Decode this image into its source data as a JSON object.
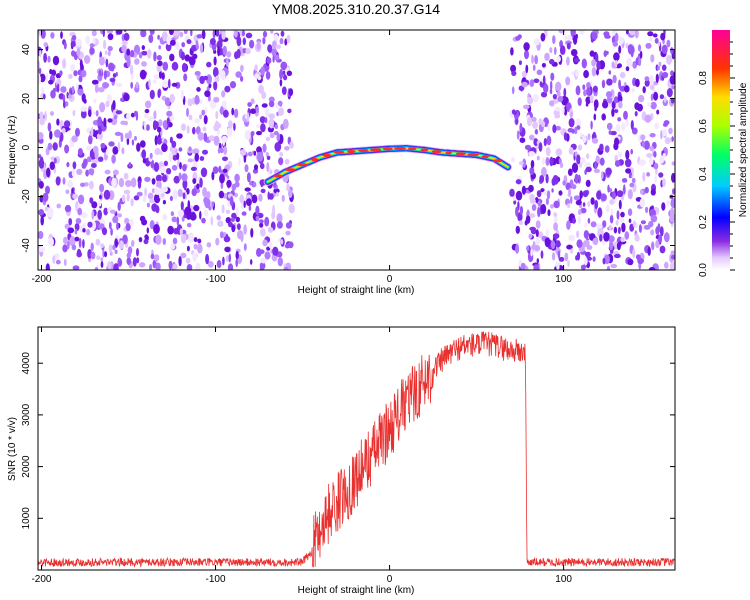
{
  "title": "YM08.2025.310.20.37.G14",
  "chart_data": [
    {
      "type": "heatmap",
      "name": "spectrogram",
      "xlabel": "Height of straight line (km)",
      "ylabel": "Frequency (Hz)",
      "xlim": [
        -202,
        164
      ],
      "ylim": [
        -50,
        48
      ],
      "xticks": [
        -200,
        -100,
        0,
        100
      ],
      "yticks": [
        -40,
        -20,
        0,
        20,
        40
      ],
      "noise_regions_km": [
        [
          -202,
          -56
        ],
        [
          70,
          164
        ]
      ],
      "signal_track": {
        "x": [
          -70,
          -60,
          -50,
          -40,
          -30,
          -20,
          -10,
          0,
          10,
          20,
          30,
          40,
          50,
          60,
          68
        ],
        "freq": [
          -14,
          -10,
          -7,
          -4,
          -2,
          -1.5,
          -1,
          -0.5,
          -0.3,
          -1,
          -2,
          -2.5,
          -3,
          -4.5,
          -8
        ]
      },
      "colorbar": {
        "label": "Normalized spectral amplitude",
        "range": [
          0.0,
          1.0
        ],
        "ticks": [
          0.0,
          0.2,
          0.4,
          0.6,
          0.8
        ],
        "tick_labels": [
          "0.0",
          "0.2",
          "0.4",
          "0.6",
          "0.8"
        ]
      }
    },
    {
      "type": "line",
      "name": "snr",
      "xlabel": "Height of straight line (km)",
      "ylabel": "SNR (10 * v/v)",
      "xlim": [
        -202,
        164
      ],
      "ylim": [
        0,
        4700
      ],
      "xticks": [
        -200,
        -100,
        0,
        100
      ],
      "yticks": [
        1000,
        2000,
        3000,
        4000
      ],
      "color": "#e8302f",
      "series": [
        {
          "name": "SNR",
          "x": [
            -202,
            -150,
            -100,
            -50,
            -45,
            -40,
            -35,
            -30,
            -25,
            -20,
            -15,
            -10,
            -5,
            0,
            5,
            10,
            15,
            20,
            25,
            30,
            35,
            40,
            45,
            50,
            55,
            60,
            65,
            70,
            75,
            78,
            79,
            100,
            164
          ],
          "y": [
            150,
            150,
            150,
            150,
            350,
            800,
            1100,
            1300,
            1500,
            1750,
            2000,
            2250,
            2500,
            2750,
            3000,
            3250,
            3450,
            3650,
            3850,
            4050,
            4200,
            4300,
            4350,
            4350,
            4380,
            4350,
            4300,
            4250,
            4220,
            4200,
            150,
            150,
            150
          ]
        }
      ]
    }
  ]
}
